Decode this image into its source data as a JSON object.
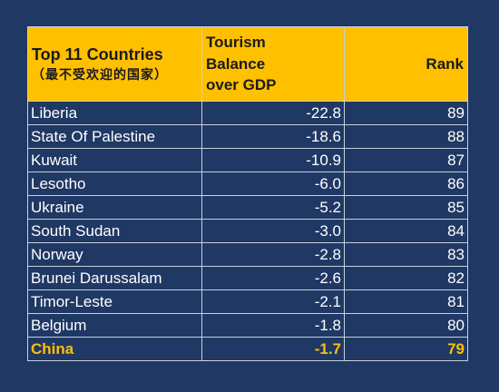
{
  "colors": {
    "background": "#1f3864",
    "header_fill": "#ffc000",
    "highlight_text": "#ffc000",
    "body_text": "#ffffff"
  },
  "header": {
    "country_label": "Top 11 Countries",
    "country_sub": "（最不受欢迎的国家）",
    "metric_label_lines": [
      "Tourism",
      "Balance",
      "over GDP"
    ],
    "rank_label": "Rank"
  },
  "chart_data": {
    "type": "table",
    "columns": [
      "Top 11 Countries（最不受欢迎的国家）",
      "Tourism Balance over GDP",
      "Rank"
    ],
    "rows": [
      {
        "country": "Liberia",
        "balance": "-22.8",
        "rank": "89"
      },
      {
        "country": "State Of Palestine",
        "balance": "-18.6",
        "rank": "88"
      },
      {
        "country": "Kuwait",
        "balance": "-10.9",
        "rank": "87"
      },
      {
        "country": "Lesotho",
        "balance": "-6.0",
        "rank": "86"
      },
      {
        "country": "Ukraine",
        "balance": "-5.2",
        "rank": "85"
      },
      {
        "country": "South Sudan",
        "balance": "-3.0",
        "rank": "84"
      },
      {
        "country": "Norway",
        "balance": "-2.8",
        "rank": "83"
      },
      {
        "country": "Brunei Darussalam",
        "balance": "-2.6",
        "rank": "82"
      },
      {
        "country": "Timor-Leste",
        "balance": "-2.1",
        "rank": "81"
      },
      {
        "country": "Belgium",
        "balance": "-1.8",
        "rank": "80"
      },
      {
        "country": "China",
        "balance": "-1.7",
        "rank": "79",
        "highlight": true
      }
    ]
  }
}
